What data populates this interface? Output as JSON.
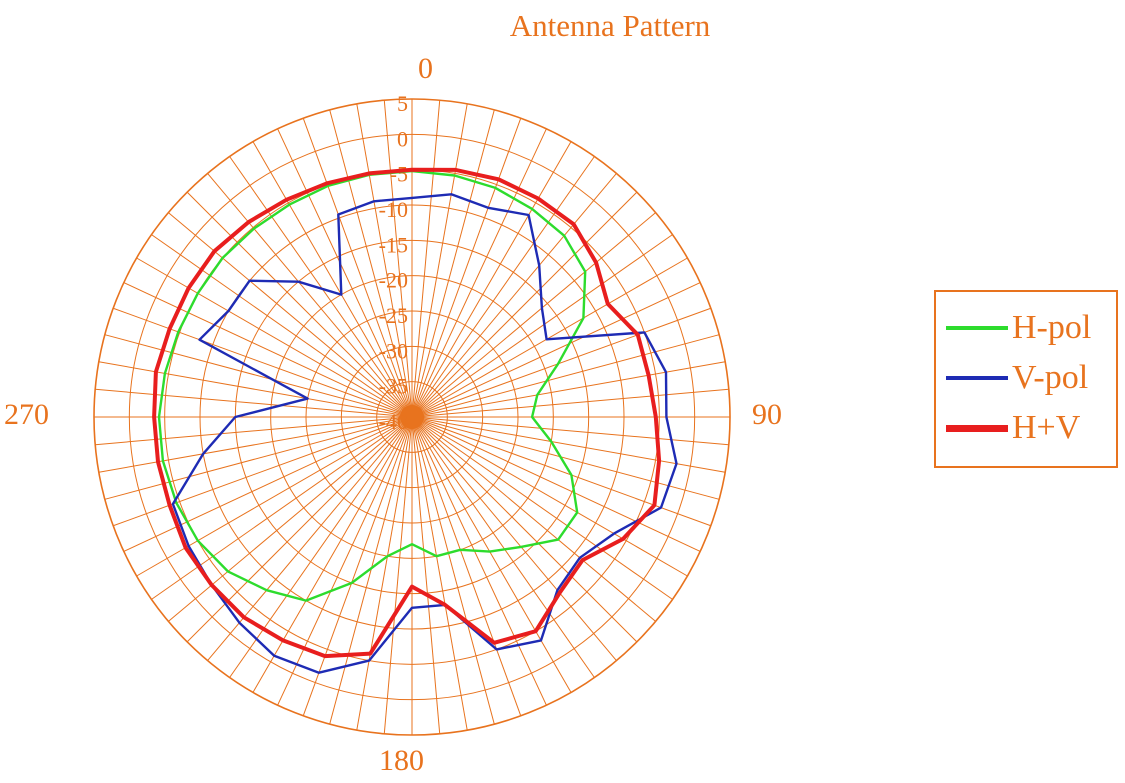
{
  "chart_data": {
    "type": "polar-line",
    "title": "Antenna Pattern",
    "angle_labels": {
      "top": "0",
      "right": "90",
      "bottom": "180",
      "left": "270"
    },
    "radial_ticks": [
      5,
      0,
      -5,
      -10,
      -15,
      -20,
      -25,
      -30,
      -35,
      -40
    ],
    "radial_range": [
      -40,
      5
    ],
    "angle_unit": "degrees",
    "angle_step": 10,
    "grid": true,
    "grid_color": "#e8731e",
    "legend_position": "right",
    "angles": [
      0,
      10,
      20,
      30,
      40,
      50,
      60,
      70,
      80,
      90,
      100,
      110,
      120,
      130,
      140,
      150,
      160,
      170,
      180,
      190,
      200,
      210,
      220,
      230,
      240,
      250,
      260,
      270,
      280,
      290,
      300,
      310,
      320,
      330,
      340,
      350
    ],
    "series": [
      {
        "name": "H-pol",
        "color": "#2ddc2d",
        "values": [
          -5.2,
          -5.3,
          -5.5,
          -6.0,
          -6.5,
          -8,
          -12,
          -18,
          -22,
          -23,
          -20,
          -16,
          -13,
          -13,
          -16,
          -18,
          -20,
          -20,
          -22,
          -20,
          -15,
          -10,
          -8,
          -6,
          -5,
          -4.5,
          -4.2,
          -4.2,
          -4.5,
          -4.8,
          -5,
          -5,
          -5.2,
          -5.3,
          -5.2,
          -5.2
        ]
      },
      {
        "name": "V-pol",
        "color": "#1e2bb4",
        "values": [
          -9,
          -8,
          -8.5,
          -7,
          -12,
          -16,
          -18,
          -5,
          -3.5,
          -4,
          -2,
          -2.5,
          -7,
          -9,
          -8,
          -3.5,
          -5,
          -13,
          -13,
          -5,
          -1.5,
          -1,
          -2,
          -3,
          -3.5,
          -4,
          -10,
          -15,
          -25,
          -8,
          -10,
          -10,
          -15,
          -20,
          -9.5,
          -9
        ]
      },
      {
        "name": "H+V",
        "color": "#e81e1e",
        "values": [
          -5,
          -4.5,
          -4.2,
          -4.3,
          -4.4,
          -6,
          -8,
          -6,
          -6,
          -5.5,
          -4.5,
          -3.5,
          -5.5,
          -8.5,
          -7.5,
          -5,
          -6,
          -13,
          -16,
          -6,
          -4,
          -3.5,
          -3,
          -3,
          -3,
          -3.5,
          -3.5,
          -3.5,
          -3.2,
          -3.5,
          -3.5,
          -3.5,
          -4,
          -4.5,
          -4.8,
          -5
        ]
      }
    ]
  }
}
